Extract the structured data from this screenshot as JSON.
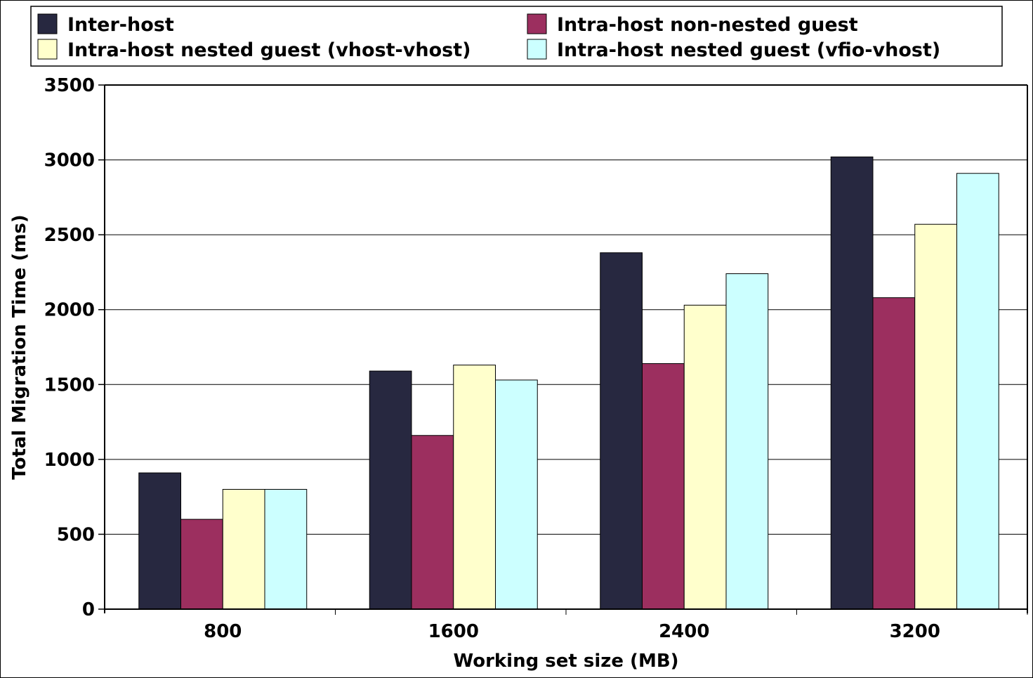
{
  "chart_data": {
    "type": "bar",
    "title": "",
    "xlabel": "Working set size (MB)",
    "ylabel": "Total Migration Time (ms)",
    "categories": [
      "800",
      "1600",
      "2400",
      "3200"
    ],
    "ylim": [
      0,
      3500
    ],
    "yticks": [
      "0",
      "500",
      "1000",
      "1500",
      "2000",
      "2500",
      "3000",
      "3500"
    ],
    "grid": true,
    "legend_position": "top",
    "series": [
      {
        "name": "Inter-host",
        "color": "#272840",
        "values": [
          910,
          1590,
          2380,
          3020
        ]
      },
      {
        "name": "Intra-host non-nested guest",
        "color": "#9c2f5f",
        "values": [
          600,
          1160,
          1640,
          2080
        ]
      },
      {
        "name": "Intra-host nested guest (vhost-vhost)",
        "color": "#ffffcc",
        "values": [
          800,
          1630,
          2030,
          2570
        ]
      },
      {
        "name": "Intra-host nested guest (vfio-vhost)",
        "color": "#ccffff",
        "values": [
          800,
          1530,
          2240,
          2910
        ]
      }
    ]
  }
}
